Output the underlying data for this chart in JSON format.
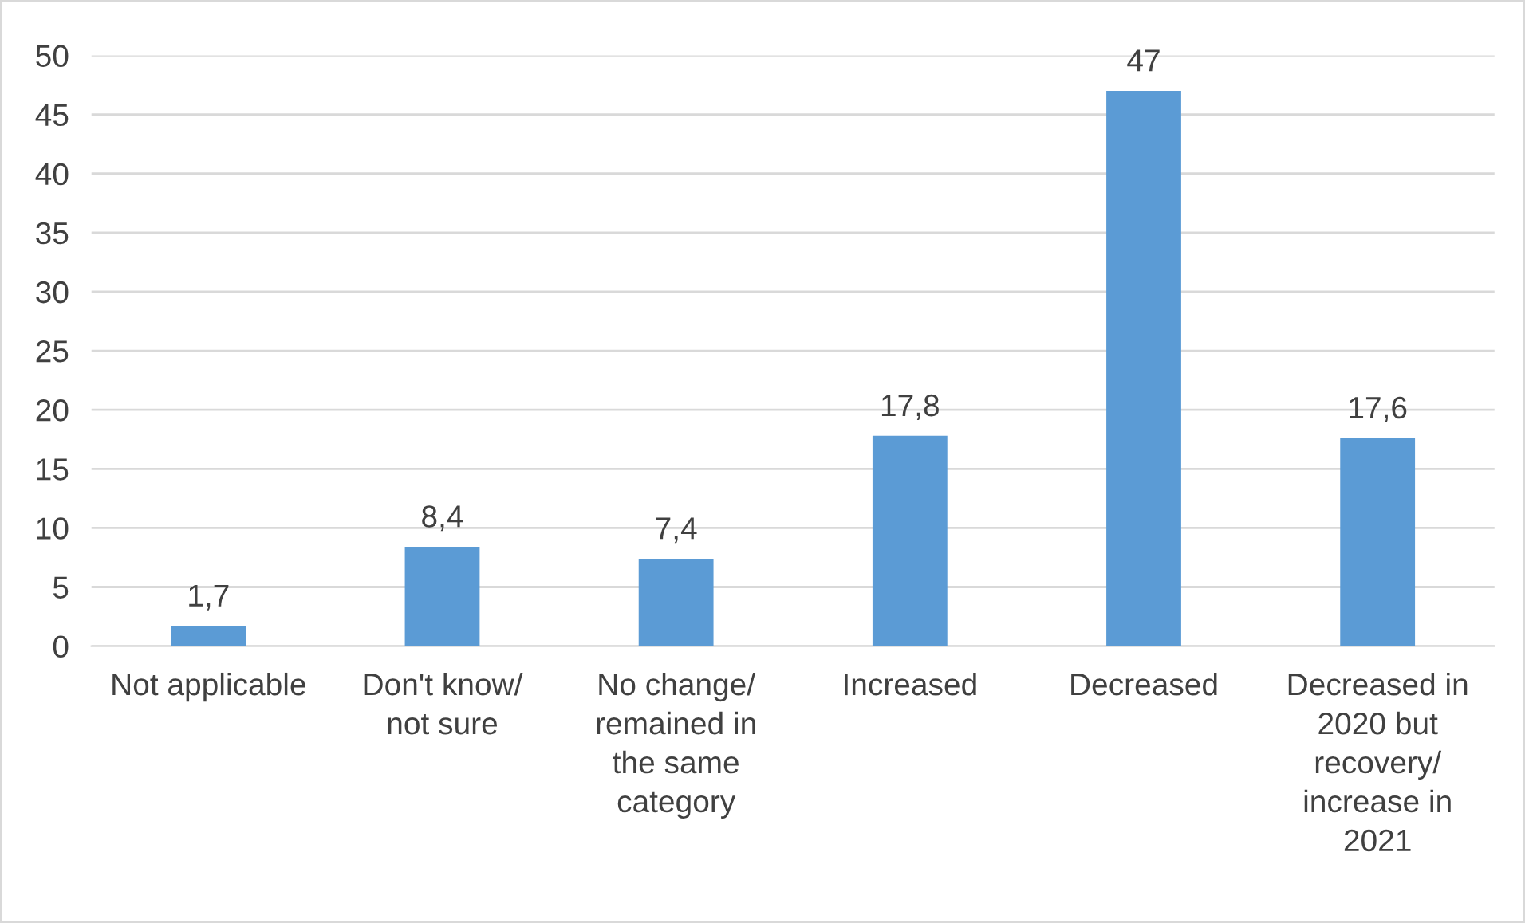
{
  "chart_data": {
    "type": "bar",
    "categories": [
      "Not applicable",
      "Don't know/ not sure",
      "No change/ remained in the same category",
      "Increased",
      "Decreased",
      "Decreased in 2020 but recovery/ increase in 2021"
    ],
    "values": [
      1.7,
      8.4,
      7.4,
      17.8,
      47,
      17.6
    ],
    "value_labels": [
      "1,7",
      "8,4",
      "7,4",
      "17,8",
      "47",
      "17,6"
    ],
    "color": "#5b9bd5",
    "ylim": [
      0,
      50
    ],
    "yticks": [
      0,
      5,
      10,
      15,
      20,
      25,
      30,
      35,
      40,
      45,
      50
    ],
    "grid": "y",
    "legend": false
  }
}
